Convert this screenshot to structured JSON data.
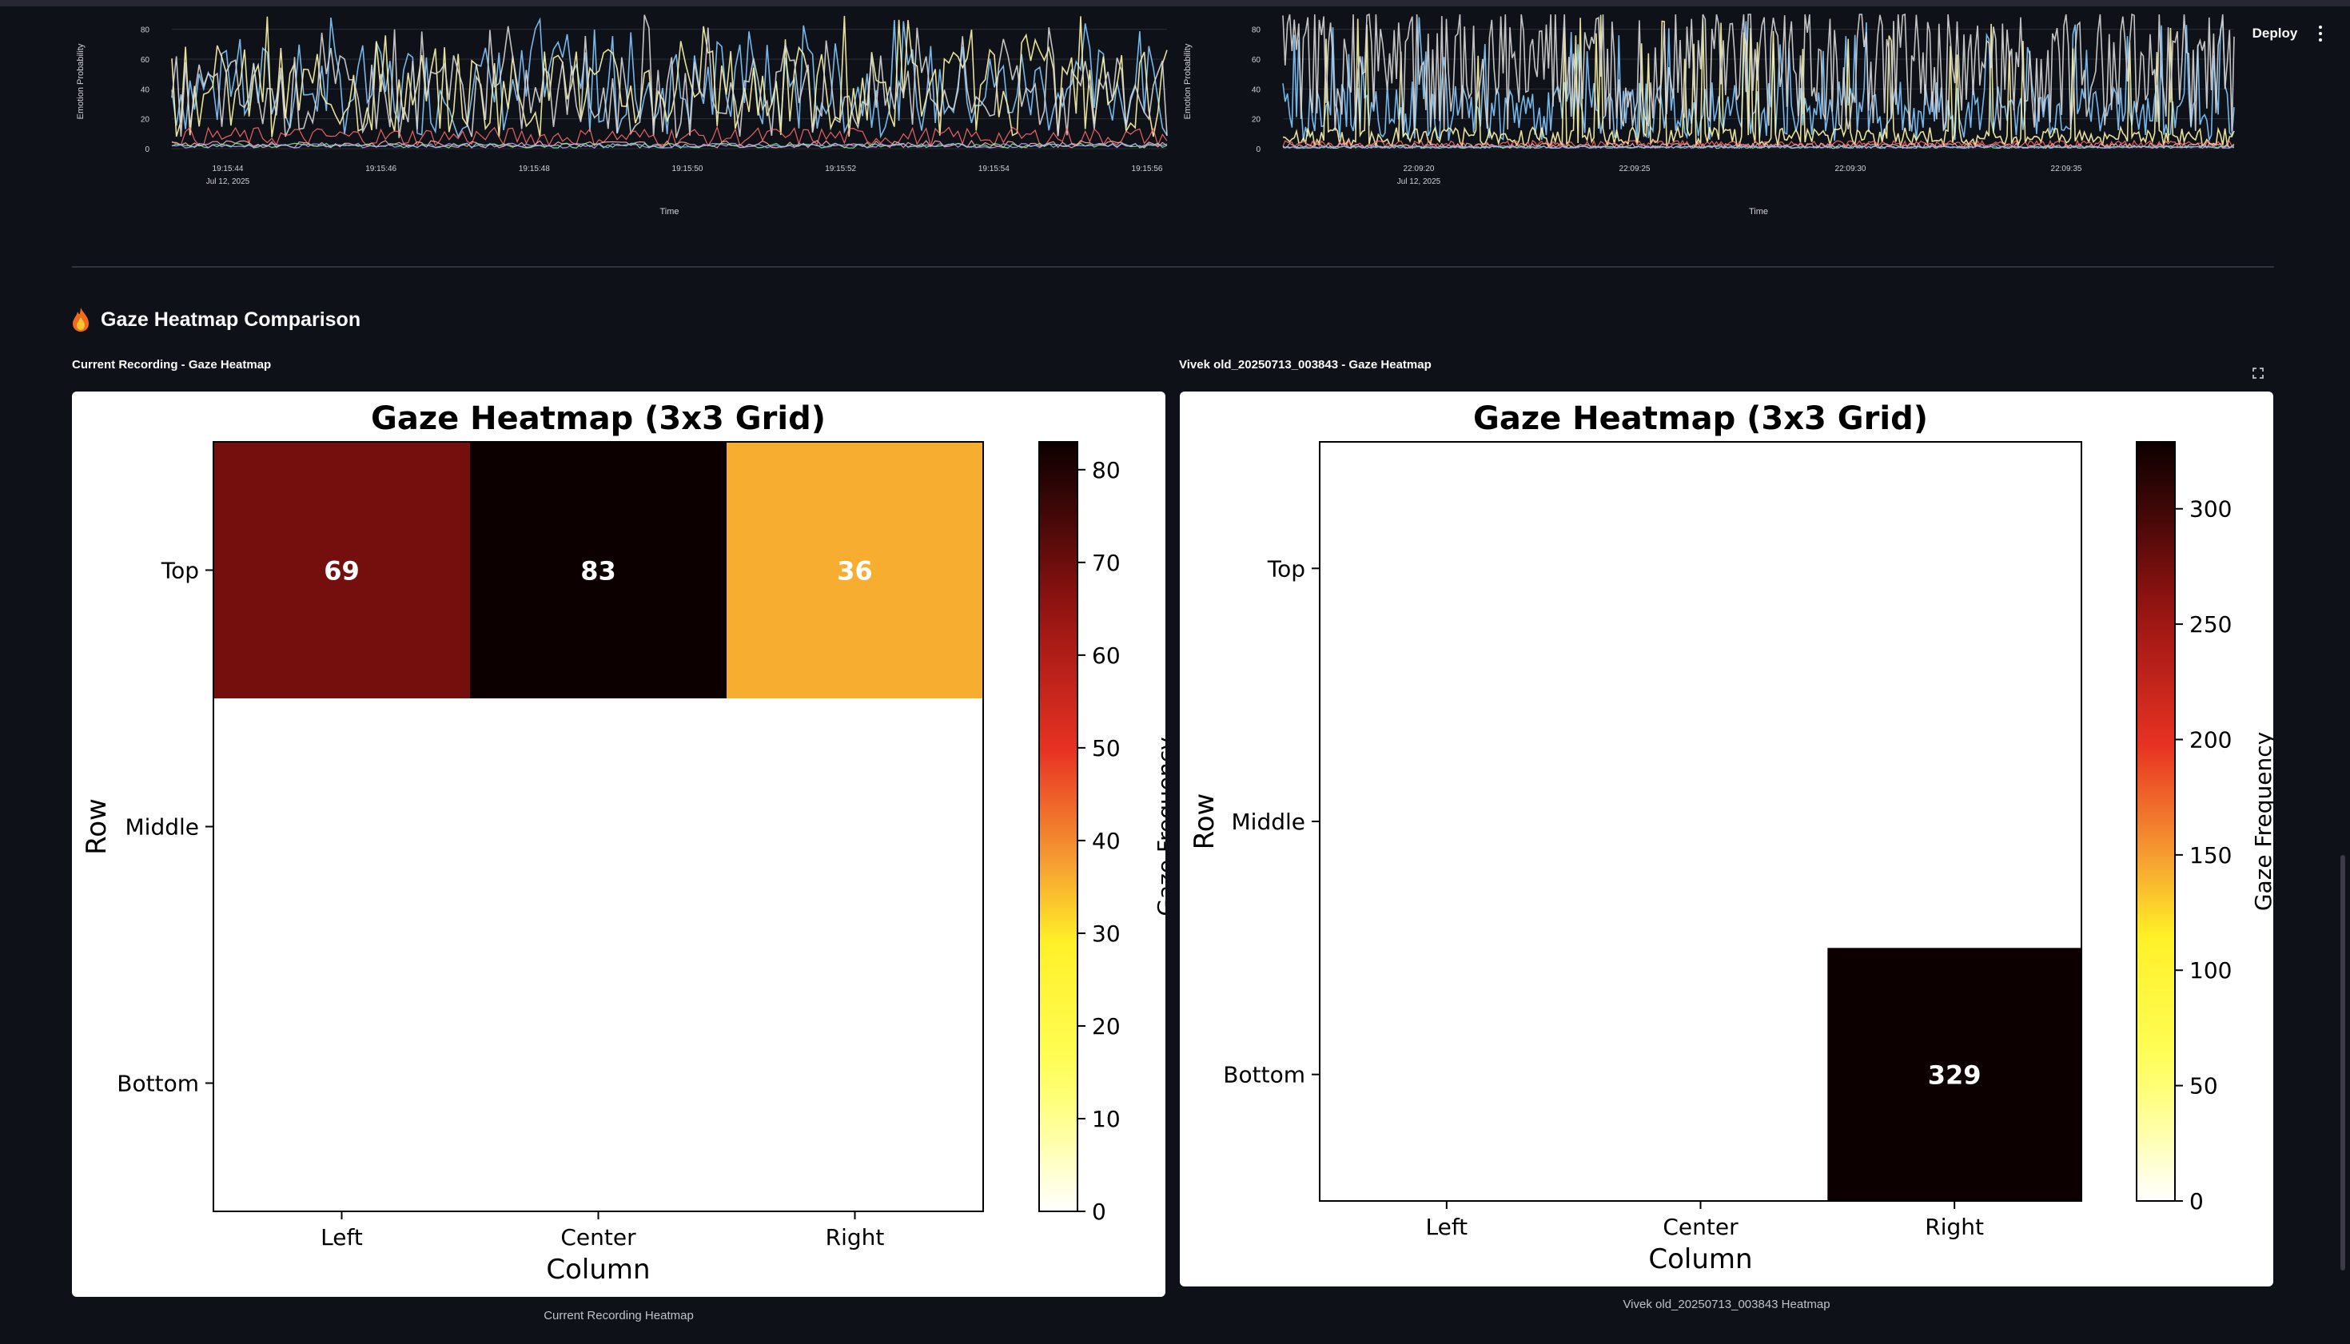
{
  "toolbar": {
    "deploy_label": "Deploy",
    "menu_icon": "kebab-menu-icon"
  },
  "emotion_charts": [
    {
      "ylabel": "Emotion Probability",
      "xlabel": "Time",
      "ylim": [
        0,
        90
      ],
      "yticks": [
        0,
        20,
        40,
        60,
        80
      ],
      "xticks": [
        "19:15:44",
        "19:15:46",
        "19:15:48",
        "19:15:50",
        "19:15:52",
        "19:15:54",
        "19:15:56"
      ],
      "date_label": "Jul 12, 2025",
      "seed": 7
    },
    {
      "ylabel": "Emotion Probability",
      "xlabel": "Time",
      "ylim": [
        0,
        90
      ],
      "yticks": [
        0,
        20,
        40,
        60,
        80
      ],
      "xticks": [
        "22:09:20",
        "22:09:25",
        "22:09:30",
        "22:09:35"
      ],
      "date_label": "Jul 12, 2025",
      "seed": 19
    }
  ],
  "section": {
    "icon": "fire-icon",
    "title": "Gaze Heatmap Comparison"
  },
  "heatmaps": [
    {
      "subtitle": "Current Recording - Gaze Heatmap",
      "caption": "Current Recording Heatmap",
      "chart_data": {
        "type": "heatmap",
        "title": "Gaze Heatmap (3x3 Grid)",
        "xlabel": "Column",
        "ylabel": "Row",
        "columns": [
          "Left",
          "Center",
          "Right"
        ],
        "rows": [
          "Top",
          "Middle",
          "Bottom"
        ],
        "values": [
          [
            69,
            83,
            36
          ],
          [
            0,
            0,
            0
          ],
          [
            0,
            0,
            0
          ]
        ],
        "colorbar_label": "Gaze Frequency",
        "colorbar_range": [
          0,
          83
        ],
        "colorbar_ticks": [
          0,
          10,
          20,
          30,
          40,
          50,
          60,
          70,
          80
        ]
      }
    },
    {
      "subtitle": "Vivek old_20250713_003843 - Gaze Heatmap",
      "caption": "Vivek old_20250713_003843 Heatmap",
      "chart_data": {
        "type": "heatmap",
        "title": "Gaze Heatmap (3x3 Grid)",
        "xlabel": "Column",
        "ylabel": "Row",
        "columns": [
          "Left",
          "Center",
          "Right"
        ],
        "rows": [
          "Top",
          "Middle",
          "Bottom"
        ],
        "values": [
          [
            0,
            0,
            0
          ],
          [
            0,
            0,
            0
          ],
          [
            0,
            0,
            329
          ]
        ],
        "colorbar_label": "Gaze Frequency",
        "colorbar_range": [
          0,
          329
        ],
        "colorbar_ticks": [
          0,
          50,
          100,
          150,
          200,
          250,
          300
        ]
      }
    }
  ]
}
